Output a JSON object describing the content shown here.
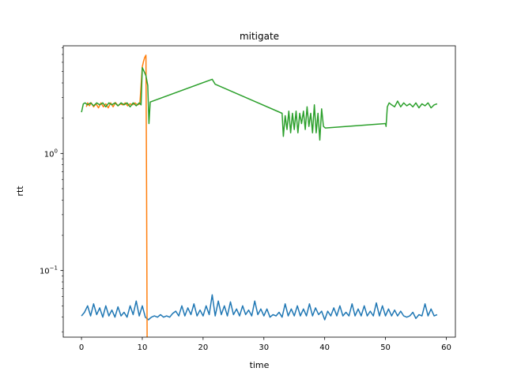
{
  "chart_data": {
    "type": "line",
    "title": "mitigate",
    "xlabel": "time",
    "ylabel": "rtt",
    "xlim": [
      -3,
      61.5
    ],
    "ylim": [
      0.027,
      8.3
    ],
    "yscale": "log",
    "grid": false,
    "x_ticks": [
      0,
      10,
      20,
      30,
      40,
      50,
      60
    ],
    "x_tick_labels": [
      "0",
      "10",
      "20",
      "30",
      "40",
      "50",
      "60"
    ],
    "y_major_ticks": [
      0.1,
      1
    ],
    "y_major_tick_labels": [
      "10−1",
      "100"
    ],
    "y_tick_base": "10",
    "y_tick_exponents": [
      "−1",
      "0"
    ],
    "y_minor_ticks": [
      0.03,
      0.04,
      0.05,
      0.06,
      0.07,
      0.08,
      0.09,
      0.2,
      0.3,
      0.4,
      0.5,
      0.6,
      0.7,
      0.8,
      0.9,
      2,
      3,
      4,
      5,
      6,
      7,
      8
    ],
    "series": [
      {
        "color": "#1f77b4",
        "x": [
          0.0,
          0.5,
          1.0,
          1.5,
          2.0,
          2.5,
          3.0,
          3.5,
          4.0,
          4.5,
          5.0,
          5.5,
          6.0,
          6.5,
          7.0,
          7.5,
          8.0,
          8.5,
          9.0,
          9.5,
          10.0,
          10.5,
          11.0,
          11.5,
          12.0,
          12.5,
          13.0,
          13.5,
          14.0,
          14.5,
          15.0,
          15.5,
          16.0,
          16.5,
          17.0,
          17.5,
          18.0,
          18.5,
          19.0,
          19.5,
          20.0,
          20.5,
          21.0,
          21.5,
          22.0,
          22.5,
          23.0,
          23.5,
          24.0,
          24.5,
          25.0,
          25.5,
          26.0,
          26.5,
          27.0,
          27.5,
          28.0,
          28.5,
          29.0,
          29.5,
          30.0,
          30.5,
          31.0,
          31.5,
          32.0,
          32.5,
          33.0,
          33.5,
          34.0,
          34.5,
          35.0,
          35.5,
          36.0,
          36.5,
          37.0,
          37.5,
          38.0,
          38.5,
          39.0,
          39.5,
          40.0,
          40.5,
          41.0,
          41.5,
          42.0,
          42.5,
          43.0,
          43.5,
          44.0,
          44.5,
          45.0,
          45.5,
          46.0,
          46.5,
          47.0,
          47.5,
          48.0,
          48.5,
          49.0,
          49.5,
          50.0,
          50.5,
          51.0,
          51.5,
          52.0,
          52.5,
          53.0,
          53.5,
          54.0,
          54.5,
          55.0,
          55.5,
          56.0,
          56.5,
          57.0,
          57.5,
          58.0,
          58.5
        ],
        "y": [
          0.041,
          0.044,
          0.05,
          0.041,
          0.052,
          0.042,
          0.048,
          0.04,
          0.05,
          0.041,
          0.046,
          0.04,
          0.049,
          0.041,
          0.044,
          0.04,
          0.05,
          0.042,
          0.055,
          0.041,
          0.05,
          0.04,
          0.038,
          0.04,
          0.041,
          0.04,
          0.042,
          0.04,
          0.041,
          0.04,
          0.043,
          0.045,
          0.041,
          0.05,
          0.041,
          0.048,
          0.042,
          0.052,
          0.041,
          0.046,
          0.041,
          0.05,
          0.042,
          0.062,
          0.041,
          0.055,
          0.042,
          0.05,
          0.041,
          0.054,
          0.042,
          0.047,
          0.041,
          0.05,
          0.042,
          0.046,
          0.041,
          0.055,
          0.042,
          0.047,
          0.041,
          0.047,
          0.04,
          0.042,
          0.041,
          0.044,
          0.04,
          0.052,
          0.041,
          0.047,
          0.041,
          0.05,
          0.041,
          0.047,
          0.041,
          0.052,
          0.041,
          0.048,
          0.042,
          0.045,
          0.038,
          0.045,
          0.041,
          0.048,
          0.041,
          0.05,
          0.041,
          0.044,
          0.041,
          0.052,
          0.041,
          0.047,
          0.041,
          0.05,
          0.041,
          0.045,
          0.041,
          0.053,
          0.041,
          0.05,
          0.041,
          0.047,
          0.041,
          0.046,
          0.041,
          0.045,
          0.041,
          0.04,
          0.041,
          0.044,
          0.039,
          0.042,
          0.041,
          0.052,
          0.041,
          0.047,
          0.041,
          0.042
        ]
      },
      {
        "color": "#ff7f0e",
        "x": [
          0.8,
          1.0,
          1.3,
          1.6,
          2.0,
          2.4,
          2.8,
          3.2,
          3.6,
          4.0,
          4.4,
          4.8,
          5.2,
          5.6,
          6.0,
          6.4,
          6.8,
          7.2,
          7.6,
          8.0,
          8.4,
          8.8,
          9.2,
          9.6,
          10.0,
          10.2,
          10.4,
          10.6,
          10.7,
          10.8
        ],
        "y": [
          2.5,
          2.7,
          2.55,
          2.7,
          2.5,
          2.65,
          2.45,
          2.7,
          2.5,
          2.65,
          2.45,
          2.7,
          2.5,
          2.72,
          2.55,
          2.65,
          2.6,
          2.7,
          2.55,
          2.65,
          2.6,
          2.7,
          2.6,
          2.65,
          5.5,
          6.1,
          6.6,
          6.9,
          0.5,
          0.025
        ]
      },
      {
        "color": "#2ca02c",
        "x": [
          0.0,
          0.3,
          0.6,
          1.0,
          1.5,
          2.0,
          2.5,
          3.0,
          3.5,
          4.0,
          4.5,
          5.0,
          5.5,
          6.0,
          6.5,
          7.0,
          7.5,
          8.0,
          8.5,
          9.0,
          9.5,
          9.8,
          10.0,
          10.3,
          10.6,
          10.9,
          11.1,
          11.3,
          21.5,
          22.0,
          33.0,
          33.2,
          33.5,
          33.8,
          34.1,
          34.4,
          34.7,
          35.0,
          35.3,
          35.6,
          35.9,
          36.2,
          36.5,
          36.8,
          37.1,
          37.4,
          37.7,
          38.0,
          38.3,
          38.6,
          38.9,
          39.2,
          39.5,
          39.8,
          40.1,
          50.0,
          50.1,
          50.3,
          50.6,
          51.0,
          51.5,
          52.0,
          52.5,
          53.0,
          53.5,
          54.0,
          54.5,
          55.0,
          55.5,
          56.0,
          56.5,
          57.0,
          57.5,
          58.0,
          58.5
        ],
        "y": [
          2.25,
          2.65,
          2.7,
          2.6,
          2.7,
          2.55,
          2.7,
          2.6,
          2.7,
          2.5,
          2.7,
          2.6,
          2.7,
          2.55,
          2.7,
          2.6,
          2.7,
          2.5,
          2.7,
          2.55,
          2.7,
          2.6,
          5.4,
          5.0,
          4.6,
          3.8,
          1.8,
          2.75,
          4.3,
          3.9,
          2.2,
          1.4,
          2.1,
          1.6,
          2.3,
          1.5,
          2.2,
          1.6,
          2.3,
          1.5,
          2.2,
          1.8,
          2.3,
          1.6,
          2.5,
          1.7,
          2.2,
          1.5,
          2.6,
          1.5,
          2.2,
          1.3,
          2.4,
          1.7,
          1.65,
          1.8,
          1.7,
          2.5,
          2.7,
          2.6,
          2.5,
          2.8,
          2.5,
          2.7,
          2.55,
          2.65,
          2.5,
          2.7,
          2.45,
          2.65,
          2.55,
          2.7,
          2.45,
          2.6,
          2.65
        ]
      }
    ]
  }
}
